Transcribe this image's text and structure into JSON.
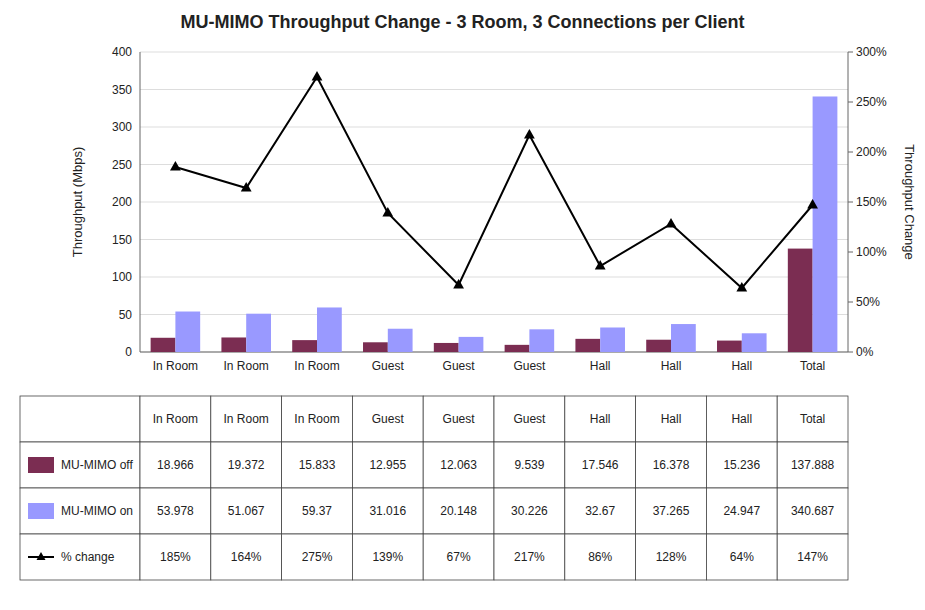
{
  "chart_data": {
    "type": "bar",
    "title": "MU-MIMO Throughput Change - 3 Room, 3 Connections per Client",
    "categories": [
      "In Room",
      "In Room",
      "In Room",
      "Guest",
      "Guest",
      "Guest",
      "Hall",
      "Hall",
      "Hall",
      "Total"
    ],
    "series": [
      {
        "name": "MU-MIMO off",
        "color": "#7B2D52",
        "values": [
          18.966,
          19.372,
          15.833,
          12.955,
          12.063,
          9.539,
          17.546,
          16.378,
          15.236,
          137.888
        ]
      },
      {
        "name": "MU-MIMO on",
        "color": "#9999FF",
        "values": [
          53.978,
          51.067,
          59.37,
          31.016,
          20.148,
          30.226,
          32.67,
          37.265,
          24.947,
          340.687
        ]
      },
      {
        "name": "% change",
        "type": "line",
        "axis": "y2",
        "color": "#000000",
        "marker": "triangle",
        "values": [
          185,
          164,
          275,
          139,
          67,
          217,
          86,
          128,
          64,
          147
        ],
        "value_labels": [
          "185%",
          "164%",
          "275%",
          "139%",
          "67%",
          "217%",
          "86%",
          "128%",
          "64%",
          "147%"
        ]
      }
    ],
    "y_label": "Throughput (Mbps)",
    "y2_label": "Throughput Change",
    "ylim": [
      0,
      400
    ],
    "yticks": [
      0,
      50,
      100,
      150,
      200,
      250,
      300,
      350,
      400
    ],
    "y2lim": [
      0,
      300
    ],
    "y2ticks": [
      {
        "value": 0,
        "label": "0%"
      },
      {
        "value": 50,
        "label": "50%"
      },
      {
        "value": 100,
        "label": "100%"
      },
      {
        "value": 150,
        "label": "150%"
      },
      {
        "value": 200,
        "label": "200%"
      },
      {
        "value": 250,
        "label": "250%"
      },
      {
        "value": 300,
        "label": "300%"
      }
    ],
    "grid": true,
    "data_labels": true
  }
}
